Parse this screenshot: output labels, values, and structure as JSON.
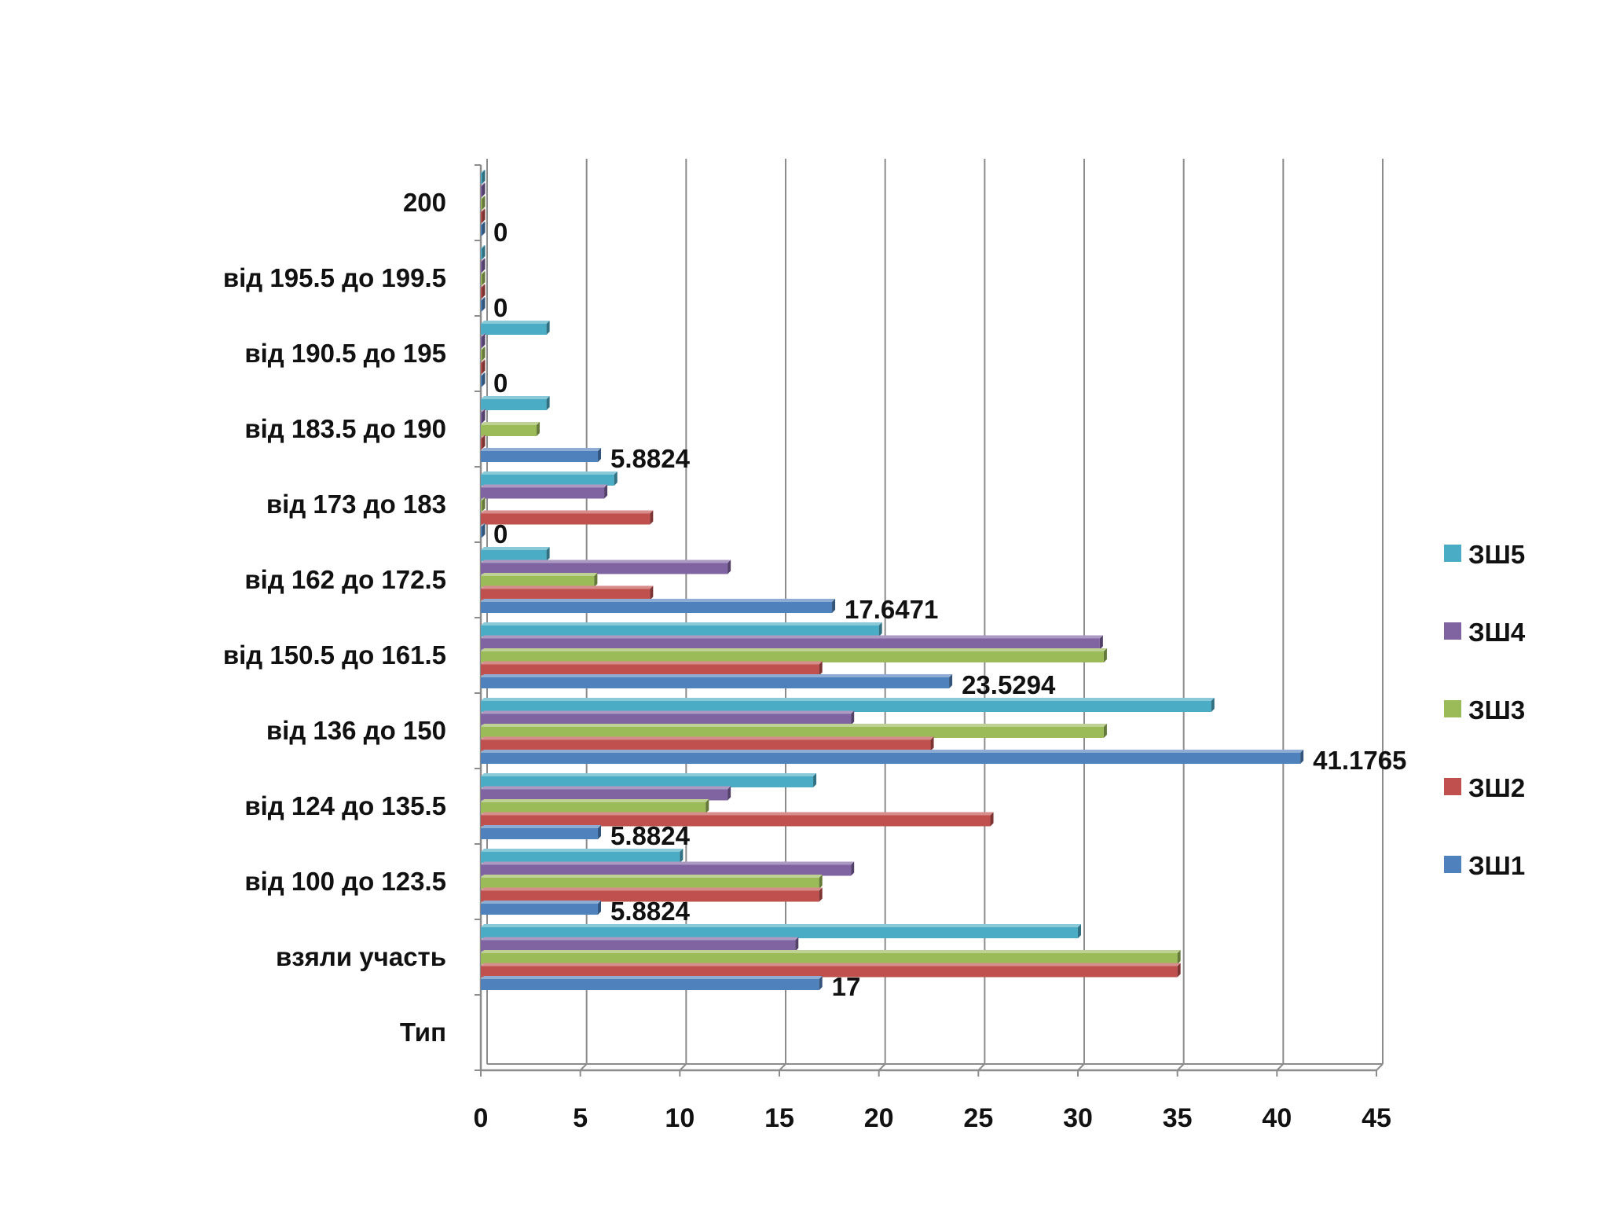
{
  "chart_data": {
    "type": "bar",
    "orientation": "horizontal",
    "categories": [
      "Тип",
      "взяли участь",
      "від 100 до 123.5",
      "від 124 до 135.5",
      "від 136 до 150",
      "від 150.5 до 161.5",
      "від 162 до 172.5",
      "від 173 до 183",
      "від 183.5 до 190",
      "від 190.5 до 195",
      "від 195.5 до 199.5",
      "200"
    ],
    "series": [
      {
        "name": "ЗШ1",
        "color": "#4F81BD",
        "values": [
          null,
          17,
          5.8824,
          5.8824,
          41.1765,
          23.5294,
          17.6471,
          0,
          5.8824,
          0,
          0,
          0
        ]
      },
      {
        "name": "ЗШ2",
        "color": "#C0504D",
        "values": [
          null,
          35,
          17,
          25.6,
          22.6,
          17,
          8.5,
          8.5,
          0,
          0,
          0,
          0
        ]
      },
      {
        "name": "ЗШ3",
        "color": "#9BBB59",
        "values": [
          null,
          35,
          17,
          11.3,
          31.3,
          31.3,
          5.7,
          0,
          2.8,
          0,
          0,
          0
        ]
      },
      {
        "name": "ЗШ4",
        "color": "#8064A2",
        "values": [
          null,
          15.8,
          18.6,
          12.4,
          18.6,
          31.1,
          12.4,
          6.2,
          0,
          0,
          0,
          0
        ]
      },
      {
        "name": "ЗШ5",
        "color": "#4BACC6",
        "values": [
          null,
          30,
          10,
          16.7,
          36.7,
          20,
          3.3,
          6.7,
          3.3,
          3.3,
          0,
          0
        ]
      }
    ],
    "data_labels": [
      {
        "category_index": 1,
        "series": "ЗШ1",
        "text": "17"
      },
      {
        "category_index": 2,
        "series": "ЗШ1",
        "text": "5.8824"
      },
      {
        "category_index": 3,
        "series": "ЗШ1",
        "text": "5.8824"
      },
      {
        "category_index": 4,
        "series": "ЗШ1",
        "text": "41.1765"
      },
      {
        "category_index": 5,
        "series": "ЗШ1",
        "text": "23.5294"
      },
      {
        "category_index": 6,
        "series": "ЗШ1",
        "text": "17.6471"
      },
      {
        "category_index": 7,
        "series": "ЗШ1",
        "text": "0"
      },
      {
        "category_index": 8,
        "series": "ЗШ1",
        "text": "5.8824"
      },
      {
        "category_index": 9,
        "series": "ЗШ1",
        "text": "0"
      },
      {
        "category_index": 10,
        "series": "ЗШ1",
        "text": "0"
      },
      {
        "category_index": 11,
        "series": "ЗШ1",
        "text": "0"
      }
    ],
    "x_ticks": [
      "0",
      "5",
      "10",
      "15",
      "20",
      "25",
      "30",
      "35",
      "40",
      "45"
    ],
    "xlim": [
      0,
      45
    ],
    "title": "",
    "xlabel": "",
    "ylabel": "",
    "grid": "vertical",
    "legend_position": "right",
    "legend_order": [
      "ЗШ5",
      "ЗШ4",
      "ЗШ3",
      "ЗШ2",
      "ЗШ1"
    ]
  }
}
